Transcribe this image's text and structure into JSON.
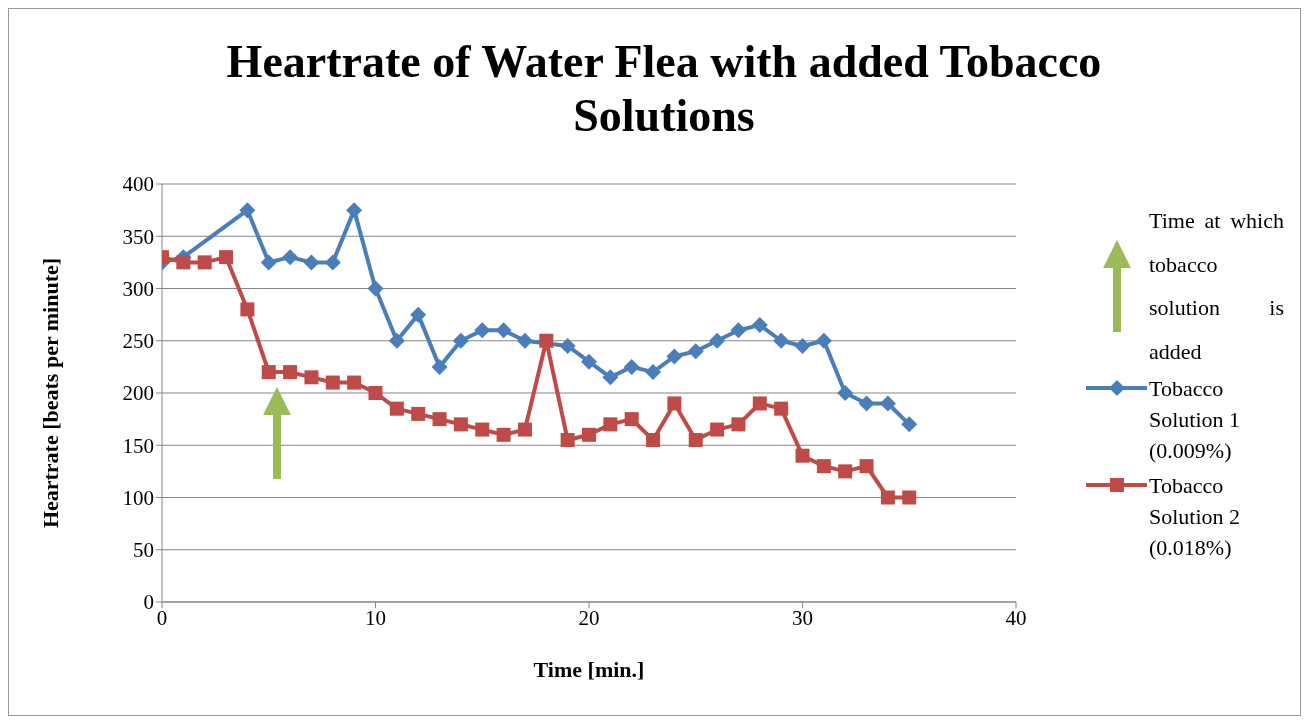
{
  "chart_data": {
    "type": "line",
    "title": "Heartrate of Water Flea with added Tobacco Solutions",
    "xlabel": "Time [min.]",
    "ylabel": "Heartrate [beats per minute]",
    "annotations": [
      "Time at which tobacco solution is added"
    ],
    "x": [
      0,
      1,
      2,
      3,
      4,
      5,
      6,
      7,
      8,
      9,
      10,
      11,
      12,
      13,
      14,
      15,
      16,
      17,
      18,
      19,
      20,
      21,
      22,
      23,
      24,
      25,
      26,
      27,
      28,
      29,
      30,
      31,
      32,
      33,
      34,
      35
    ],
    "series": [
      {
        "name": "Tobacco Solution 1 (0.009%)",
        "color": "#4a7ebb",
        "marker": "diamond",
        "values": [
          325,
          330,
          null,
          null,
          375,
          325,
          330,
          325,
          325,
          375,
          300,
          250,
          275,
          225,
          250,
          260,
          260,
          250,
          null,
          245,
          230,
          215,
          225,
          220,
          235,
          240,
          250,
          260,
          265,
          250,
          245,
          250,
          200,
          190,
          190,
          170
        ]
      },
      {
        "name": "Tobacco Solution 2 (0.018%)",
        "color": "#be4b48",
        "marker": "square",
        "values": [
          330,
          325,
          325,
          330,
          280,
          220,
          220,
          215,
          210,
          210,
          200,
          185,
          180,
          175,
          170,
          165,
          160,
          165,
          250,
          155,
          160,
          170,
          175,
          155,
          190,
          155,
          165,
          170,
          190,
          185,
          140,
          130,
          125,
          130,
          100,
          100
        ]
      }
    ],
    "xlim": [
      0,
      40
    ],
    "xticks": [
      0,
      10,
      20,
      30,
      40
    ],
    "ylim": [
      0,
      400
    ],
    "yticks": [
      0,
      50,
      100,
      150,
      200,
      250,
      300,
      350,
      400
    ],
    "grid": "y",
    "legend": "right",
    "line_style": "solid"
  }
}
